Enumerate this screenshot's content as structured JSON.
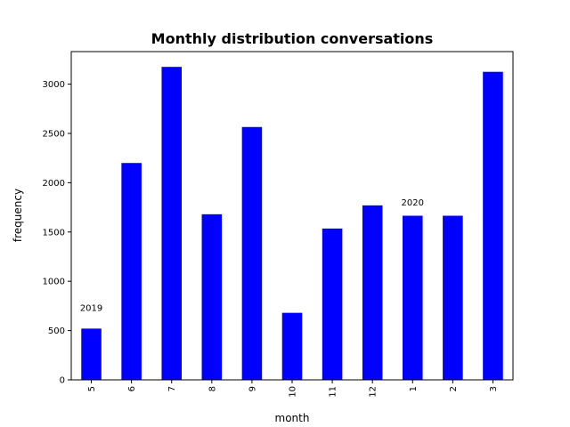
{
  "chart_data": {
    "type": "bar",
    "title": "Monthly distribution conversations",
    "xlabel": "month",
    "ylabel": "frequency",
    "categories": [
      "5",
      "6",
      "7",
      "8",
      "9",
      "10",
      "11",
      "12",
      "1",
      "2",
      "3"
    ],
    "values": [
      520,
      2200,
      3175,
      1680,
      2565,
      680,
      1535,
      1770,
      1665,
      1665,
      3125
    ],
    "ylim": [
      0,
      3330
    ],
    "yticks": [
      0,
      500,
      1000,
      1500,
      2000,
      2500,
      3000
    ],
    "bar_color": "#0000ff",
    "grid": false,
    "annotations": [
      {
        "text": "2019",
        "category": "5",
        "y": 700
      },
      {
        "text": "2020",
        "category": "1",
        "y": 1770
      }
    ]
  }
}
